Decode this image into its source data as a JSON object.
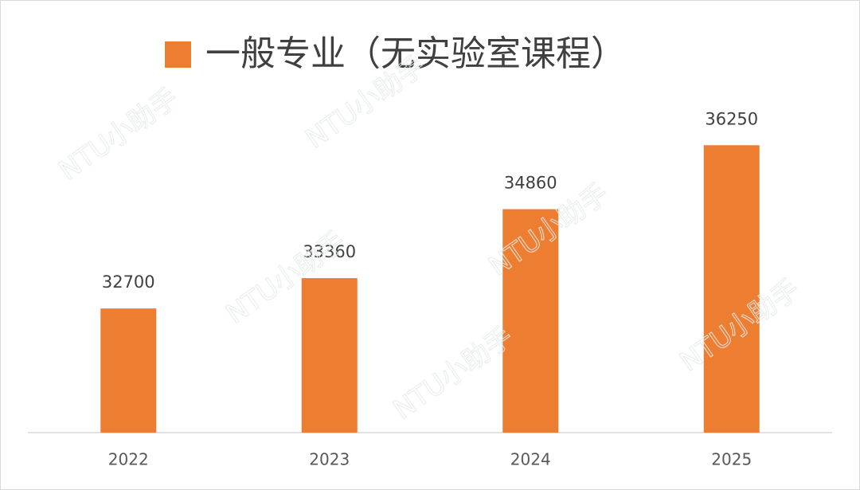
{
  "chart_data": {
    "type": "bar",
    "categories": [
      "2022",
      "2023",
      "2024",
      "2025"
    ],
    "series": [
      {
        "name": "一般专业（无实验室课程）",
        "color": "#ED7D31",
        "values": [
          32700,
          33360,
          34860,
          36250
        ]
      }
    ],
    "ylim": [
      30000,
      37000
    ],
    "legend": "top",
    "watermark": "NTU小助手"
  }
}
